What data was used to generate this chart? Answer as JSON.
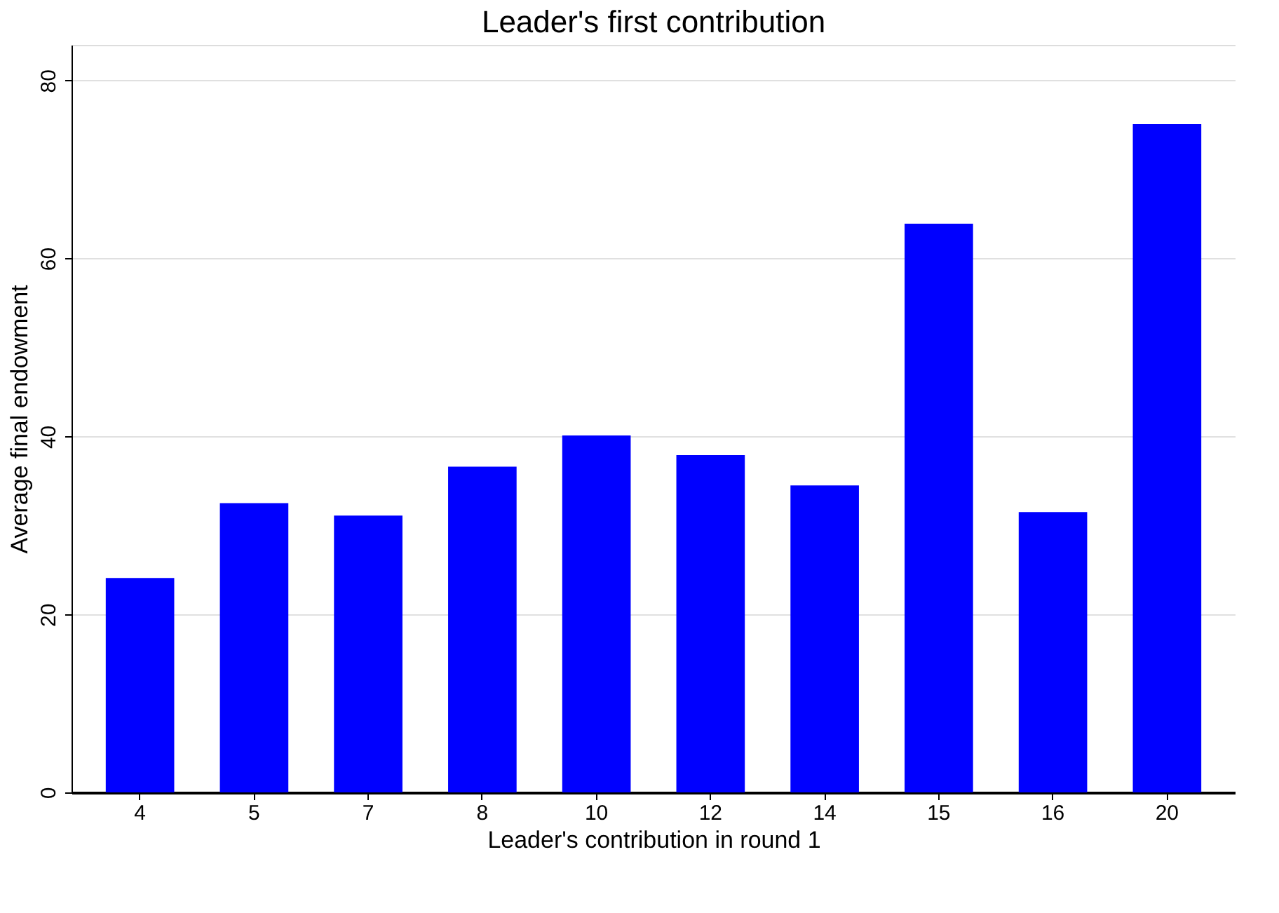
{
  "chart_data": {
    "type": "bar",
    "title": "Leader's first contribution",
    "xlabel": "Leader's contribution in round 1",
    "ylabel": "Average final endowment",
    "categories": [
      "4",
      "5",
      "7",
      "8",
      "10",
      "12",
      "14",
      "15",
      "16",
      "20"
    ],
    "values": [
      24.1,
      32.5,
      31.1,
      36.6,
      40.1,
      37.9,
      34.5,
      63.9,
      31.5,
      75.1
    ],
    "color": "#0000ff",
    "ylim": [
      0,
      84
    ],
    "yticks": [
      0,
      20,
      40,
      60,
      80
    ],
    "grid": "y"
  }
}
